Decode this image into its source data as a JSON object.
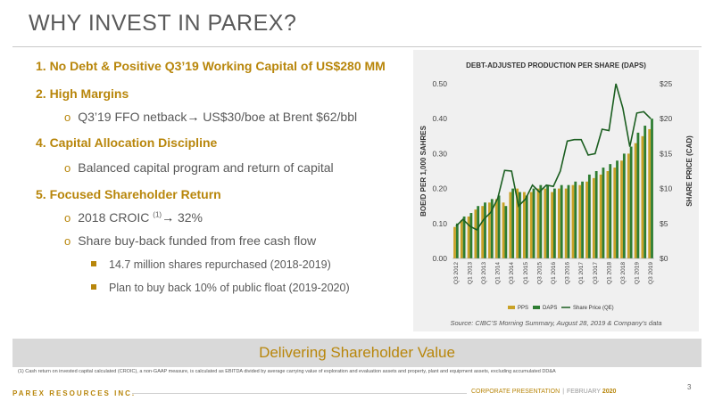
{
  "slide": {
    "title": "WHY INVEST IN PAREX?",
    "page_number": "3"
  },
  "bullets": {
    "b1": "1.  No Debt & Positive Q3’19 Working Capital of US$280 MM",
    "b2": "2.  High Margins",
    "b2a_prefix": "Q3’19  FFO netback",
    "b2a_suffix": " US$30/boe at Brent $62/bbl",
    "b4": "4.  Capital Allocation Discipline",
    "b4a": "Balanced capital program and return of capital",
    "b5": "5.  Focused Shareholder Return",
    "b5a_prefix": "2018 CROIC ",
    "b5a_sup": "(1)",
    "b5a_suffix": " 32%",
    "b5b": "Share buy-back funded from free cash flow",
    "b5b1": "14.7 million shares repurchased (2018-2019)",
    "b5b2": "Plan to buy back 10% of public float (2019-2020)",
    "bullet_marker": "o",
    "arrow": "→"
  },
  "chart_data": {
    "type": "bar",
    "title": "DEBT-ADJUSTED PRODUCTION PER SHARE (DAPS)",
    "ylabel": "BOE/D PER 1,000 SAHRES",
    "y2label": "SHARE PRICE (CAD)",
    "ylim": [
      0,
      0.5
    ],
    "y_ticks": [
      "0.00",
      "0.10",
      "0.20",
      "0.30",
      "0.40",
      "0.50"
    ],
    "y2lim": [
      0,
      25
    ],
    "y2_ticks": [
      "$0",
      "$5",
      "$10",
      "$15",
      "$20",
      "$25"
    ],
    "categories": [
      "Q3 2012",
      "Q4 2012",
      "Q1 2013",
      "Q2 2013",
      "Q3 2013",
      "Q4 2013",
      "Q1 2014",
      "Q2 2014",
      "Q3 2014",
      "Q4 2014",
      "Q1 2015",
      "Q2 2015",
      "Q3 2015",
      "Q4 2015",
      "Q1 2016",
      "Q2 2016",
      "Q3 2016",
      "Q4 2016",
      "Q1 2017",
      "Q2 2017",
      "Q3 2017",
      "Q4 2017",
      "Q1 2018",
      "Q2 2018",
      "Q3 2018",
      "Q4 2018",
      "Q1 2019",
      "Q2 2019",
      "Q3 2019"
    ],
    "x_tick_labels": [
      "Q3 2012",
      "Q1 2013",
      "Q3 2013",
      "Q1 2014",
      "Q3 2014",
      "Q1 2015",
      "Q3 2015",
      "Q1 2016",
      "Q3 2016",
      "Q1 2017",
      "Q3 2017",
      "Q1 2018",
      "Q3 2018",
      "Q1 2019",
      "Q3 2019"
    ],
    "series": [
      {
        "name": "PPS",
        "axis": "left",
        "type": "bar",
        "color": "#c9a227",
        "values": [
          0.09,
          0.11,
          0.12,
          0.14,
          0.15,
          0.16,
          0.17,
          0.16,
          0.19,
          0.2,
          0.19,
          0.19,
          0.2,
          0.2,
          0.19,
          0.2,
          0.2,
          0.21,
          0.21,
          0.22,
          0.23,
          0.24,
          0.25,
          0.26,
          0.28,
          0.3,
          0.33,
          0.35,
          0.37
        ]
      },
      {
        "name": "DAPS",
        "axis": "left",
        "type": "bar",
        "color": "#2e7d32",
        "values": [
          0.1,
          0.12,
          0.13,
          0.15,
          0.16,
          0.17,
          0.18,
          0.15,
          0.2,
          0.19,
          0.18,
          0.2,
          0.21,
          0.21,
          0.2,
          0.21,
          0.21,
          0.22,
          0.22,
          0.24,
          0.25,
          0.26,
          0.27,
          0.28,
          0.3,
          0.32,
          0.36,
          0.38,
          0.4
        ]
      },
      {
        "name": "Share Price (QE)",
        "axis": "right",
        "type": "line",
        "color": "#1b5e20",
        "values": [
          4.6,
          5.6,
          4.6,
          4.1,
          5.6,
          6.6,
          8.6,
          12.6,
          12.5,
          7.5,
          8.5,
          10.5,
          9.5,
          10.5,
          10.3,
          12.5,
          16.8,
          17.0,
          17.0,
          14.8,
          15.0,
          18.5,
          18.3,
          25.0,
          21.5,
          16.0,
          20.8,
          21.0,
          20.0
        ]
      }
    ],
    "legend_position": "bottom",
    "grid": false,
    "source": "Source: CIBC’S Morning Summary,  August 28, 2019  & Company’s data"
  },
  "banner": {
    "text": "Delivering Shareholder Value"
  },
  "footnote": "(1) Cash return on invested capital calculated (CROIC), a non-GAAP measure, is calculated as EBITDA divided by average carrying value of exploration and evaluation assets and property, plant and equipment assets, excluding accumulated DD&A",
  "footer": {
    "company": "PAREX RESOURCES INC.",
    "label": "CORPORATE PRESENTATION",
    "separator": "|",
    "month": "FEBRUARY",
    "year": "2020"
  },
  "colors": {
    "accent_gold": "#b8860b",
    "pps_bar": "#c9a227",
    "daps_bar": "#2e7d32",
    "price_line": "#1b5e20",
    "banner_bg": "#d9d9d9",
    "chart_bg": "#f0f0f0"
  }
}
